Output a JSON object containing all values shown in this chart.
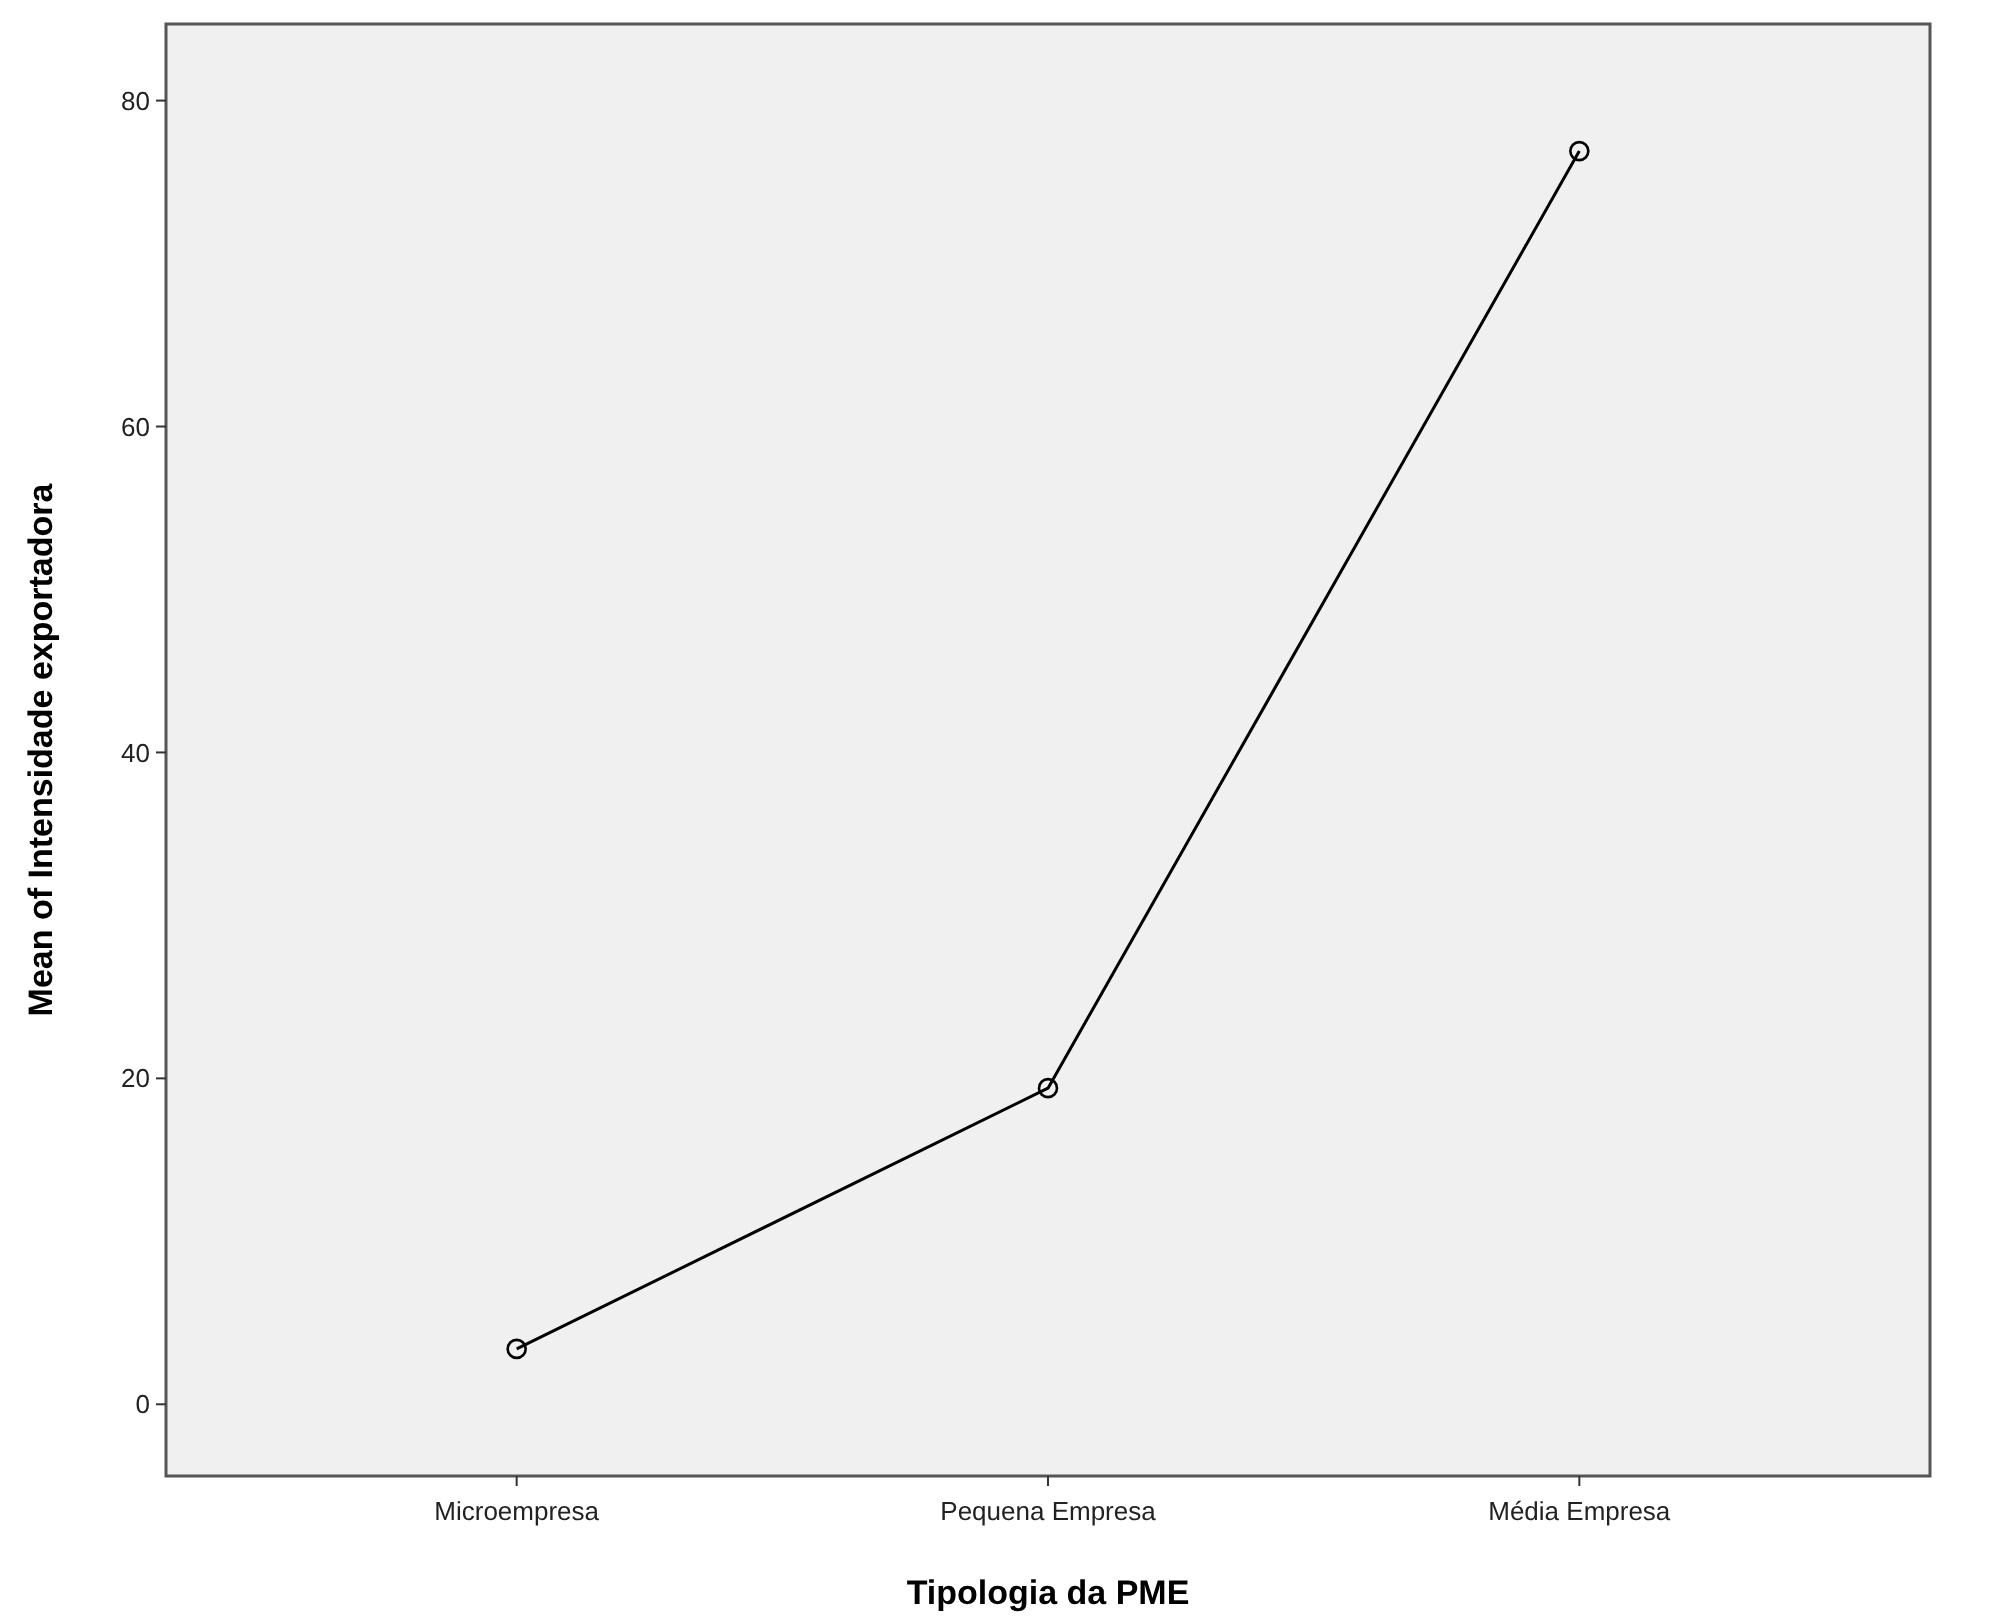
{
  "chart_data": {
    "type": "line",
    "xlabel": "Tipologia da PME",
    "ylabel": "Mean of Intensidade exportadora",
    "categories": [
      "Microempresa",
      "Pequena Empresa",
      "Média Empresa"
    ],
    "series": [
      {
        "color": "#000000",
        "values": [
          3.4,
          19.4,
          76.9
        ]
      }
    ],
    "ylim": [
      -4.4,
      84.7
    ],
    "yticks": [
      0,
      20,
      40,
      60,
      80
    ],
    "grid": false,
    "marker": "circle",
    "line_style": "solid"
  }
}
